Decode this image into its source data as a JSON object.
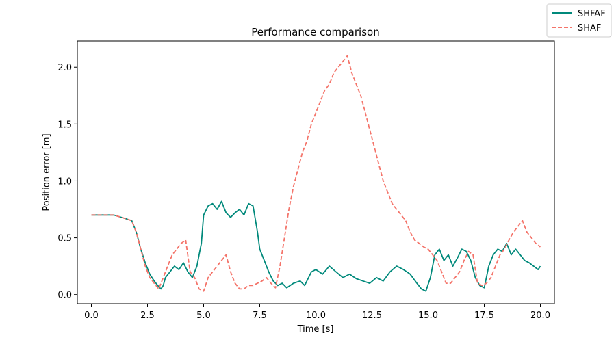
{
  "chart_data": {
    "type": "line",
    "title": "Performance comparison",
    "xlabel": "Time [s]",
    "ylabel": "Position error [m]",
    "xlim": [
      -0.625,
      20.625
    ],
    "ylim": [
      -0.08,
      2.23
    ],
    "xticks": [
      "0.0",
      "2.5",
      "5.0",
      "7.5",
      "10.0",
      "12.5",
      "15.0",
      "17.5",
      "20.0"
    ],
    "yticks": [
      "0.0",
      "0.5",
      "1.0",
      "1.5",
      "2.0"
    ],
    "grid": false,
    "legend_position": "top-right (outside axes)",
    "series": [
      {
        "name": "SHFAF",
        "color": "#00897b",
        "linestyle": "solid",
        "x": [
          0,
          0.5,
          1.0,
          1.5,
          1.8,
          2.0,
          2.2,
          2.4,
          2.6,
          2.8,
          3.0,
          3.1,
          3.2,
          3.3,
          3.5,
          3.7,
          3.9,
          4.1,
          4.3,
          4.5,
          4.7,
          4.8,
          4.9,
          5.0,
          5.2,
          5.4,
          5.6,
          5.8,
          6.0,
          6.2,
          6.4,
          6.6,
          6.8,
          7.0,
          7.2,
          7.4,
          7.5,
          7.7,
          7.9,
          8.1,
          8.3,
          8.5,
          8.7,
          9.0,
          9.3,
          9.5,
          9.8,
          10.0,
          10.3,
          10.6,
          10.9,
          11.2,
          11.5,
          11.8,
          12.1,
          12.4,
          12.7,
          13.0,
          13.3,
          13.6,
          13.9,
          14.2,
          14.5,
          14.7,
          14.9,
          15.1,
          15.3,
          15.5,
          15.7,
          15.9,
          16.1,
          16.3,
          16.5,
          16.7,
          16.9,
          17.1,
          17.3,
          17.5,
          17.7,
          17.9,
          18.1,
          18.3,
          18.5,
          18.7,
          18.9,
          19.1,
          19.3,
          19.5,
          19.7,
          19.9,
          20.0
        ],
        "values": [
          0.7,
          0.7,
          0.7,
          0.67,
          0.65,
          0.55,
          0.4,
          0.28,
          0.18,
          0.12,
          0.07,
          0.05,
          0.08,
          0.15,
          0.2,
          0.25,
          0.22,
          0.28,
          0.2,
          0.15,
          0.25,
          0.35,
          0.45,
          0.7,
          0.78,
          0.8,
          0.75,
          0.82,
          0.72,
          0.68,
          0.72,
          0.75,
          0.7,
          0.8,
          0.78,
          0.55,
          0.4,
          0.3,
          0.2,
          0.12,
          0.08,
          0.1,
          0.06,
          0.1,
          0.12,
          0.08,
          0.2,
          0.22,
          0.18,
          0.25,
          0.2,
          0.15,
          0.18,
          0.14,
          0.12,
          0.1,
          0.15,
          0.12,
          0.2,
          0.25,
          0.22,
          0.18,
          0.1,
          0.05,
          0.03,
          0.15,
          0.35,
          0.4,
          0.3,
          0.35,
          0.25,
          0.32,
          0.4,
          0.38,
          0.3,
          0.15,
          0.08,
          0.06,
          0.25,
          0.35,
          0.4,
          0.38,
          0.45,
          0.35,
          0.4,
          0.35,
          0.3,
          0.28,
          0.25,
          0.22,
          0.25
        ]
      },
      {
        "name": "SHAF",
        "color": "#f4746a",
        "linestyle": "dashed",
        "x": [
          0,
          0.5,
          1.0,
          1.5,
          1.8,
          2.0,
          2.2,
          2.4,
          2.6,
          2.8,
          3.0,
          3.2,
          3.4,
          3.6,
          3.8,
          4.0,
          4.2,
          4.4,
          4.6,
          4.8,
          5.0,
          5.2,
          5.4,
          5.6,
          5.8,
          6.0,
          6.2,
          6.4,
          6.6,
          6.8,
          7.0,
          7.2,
          7.4,
          7.6,
          7.8,
          8.0,
          8.2,
          8.4,
          8.6,
          8.8,
          9.0,
          9.2,
          9.4,
          9.6,
          9.8,
          10.0,
          10.2,
          10.4,
          10.6,
          10.8,
          11.0,
          11.2,
          11.4,
          11.6,
          11.8,
          12.0,
          12.2,
          12.4,
          12.6,
          12.8,
          13.0,
          13.2,
          13.4,
          13.6,
          13.8,
          14.0,
          14.2,
          14.4,
          14.6,
          14.8,
          15.0,
          15.2,
          15.4,
          15.6,
          15.8,
          16.0,
          16.2,
          16.4,
          16.6,
          16.8,
          17.0,
          17.2,
          17.4,
          17.6,
          17.8,
          18.0,
          18.2,
          18.4,
          18.6,
          18.8,
          19.0,
          19.2,
          19.4,
          19.6,
          19.8,
          20.0
        ],
        "values": [
          0.7,
          0.7,
          0.7,
          0.67,
          0.65,
          0.55,
          0.4,
          0.25,
          0.15,
          0.1,
          0.05,
          0.15,
          0.25,
          0.35,
          0.4,
          0.45,
          0.48,
          0.2,
          0.15,
          0.05,
          0.03,
          0.15,
          0.2,
          0.25,
          0.3,
          0.35,
          0.2,
          0.1,
          0.05,
          0.05,
          0.08,
          0.08,
          0.1,
          0.12,
          0.15,
          0.1,
          0.06,
          0.25,
          0.5,
          0.75,
          0.95,
          1.1,
          1.25,
          1.35,
          1.5,
          1.6,
          1.7,
          1.8,
          1.85,
          1.95,
          2.0,
          2.05,
          2.1,
          1.95,
          1.85,
          1.75,
          1.6,
          1.45,
          1.3,
          1.15,
          1.0,
          0.9,
          0.8,
          0.75,
          0.7,
          0.65,
          0.55,
          0.48,
          0.45,
          0.42,
          0.4,
          0.35,
          0.3,
          0.2,
          0.1,
          0.1,
          0.15,
          0.2,
          0.3,
          0.38,
          0.35,
          0.1,
          0.08,
          0.1,
          0.15,
          0.25,
          0.35,
          0.4,
          0.48,
          0.55,
          0.6,
          0.65,
          0.55,
          0.5,
          0.45,
          0.42
        ]
      }
    ]
  }
}
